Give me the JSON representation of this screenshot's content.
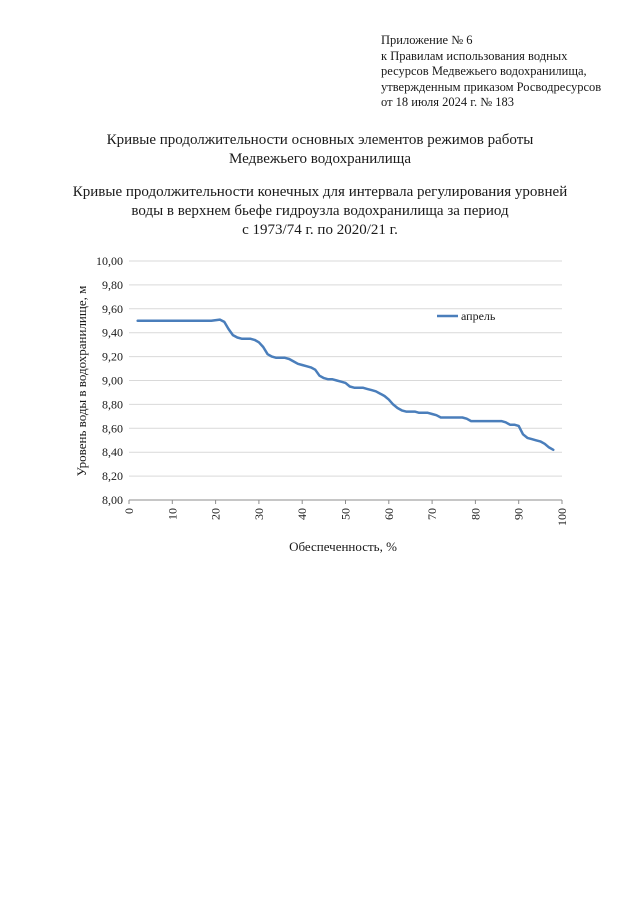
{
  "appendix": {
    "lines": [
      "Приложение № 6",
      "к Правилам использования водных",
      "ресурсов Медвежьего водохранилища,",
      "утвержденным приказом Росводресурсов",
      "от 18 июля 2024 г. № 183"
    ]
  },
  "heading": {
    "main_lines": [
      "Кривые продолжительности основных элементов режимов работы",
      "Медвежьего водохранилища"
    ],
    "sub_lines": [
      "Кривые продолжительности конечных для интервала регулирования уровней",
      "воды в верхнем бьефе гидроузла водохранилища за период",
      "с 1973/74 г. по 2020/21 г."
    ]
  },
  "chart_data": {
    "type": "line",
    "xlabel": "Обеспеченность, %",
    "ylabel": "Уровень воды в водохранилище, м",
    "xlim": [
      0,
      100
    ],
    "ylim": [
      8.0,
      10.0
    ],
    "x_ticks": [
      "0",
      "10",
      "20",
      "30",
      "40",
      "50",
      "60",
      "70",
      "80",
      "90",
      "100"
    ],
    "y_ticks": [
      "8,00",
      "8,20",
      "8,40",
      "8,60",
      "8,80",
      "9,00",
      "9,20",
      "9,40",
      "9,60",
      "9,80",
      "10,00"
    ],
    "grid": "horizontal",
    "legend_position": "top-right",
    "line_color": "#4a7ebb",
    "series": [
      {
        "name": "апрель",
        "x": [
          2,
          5,
          10,
          15,
          19,
          21,
          22,
          23,
          24,
          25,
          26,
          27,
          28,
          29,
          30,
          31,
          32,
          33,
          34,
          35,
          36,
          37,
          38,
          39,
          40,
          41,
          42,
          43,
          44,
          45,
          46,
          47,
          48,
          49,
          50,
          51,
          52,
          53,
          54,
          55,
          56,
          57,
          58,
          59,
          60,
          61,
          62,
          63,
          64,
          65,
          66,
          67,
          68,
          69,
          70,
          71,
          72,
          73,
          74,
          75,
          76,
          77,
          78,
          79,
          80,
          81,
          82,
          83,
          84,
          85,
          86,
          87,
          88,
          89,
          90,
          91,
          92,
          93,
          94,
          95,
          96,
          97,
          98
        ],
        "values": [
          9.5,
          9.5,
          9.5,
          9.5,
          9.5,
          9.51,
          9.49,
          9.43,
          9.38,
          9.36,
          9.35,
          9.35,
          9.35,
          9.34,
          9.32,
          9.28,
          9.22,
          9.2,
          9.19,
          9.19,
          9.19,
          9.18,
          9.16,
          9.14,
          9.13,
          9.12,
          9.11,
          9.09,
          9.04,
          9.02,
          9.01,
          9.01,
          9.0,
          8.99,
          8.98,
          8.95,
          8.94,
          8.94,
          8.94,
          8.93,
          8.92,
          8.91,
          8.89,
          8.87,
          8.84,
          8.8,
          8.77,
          8.75,
          8.74,
          8.74,
          8.74,
          8.73,
          8.73,
          8.73,
          8.72,
          8.71,
          8.69,
          8.69,
          8.69,
          8.69,
          8.69,
          8.69,
          8.68,
          8.66,
          8.66,
          8.66,
          8.66,
          8.66,
          8.66,
          8.66,
          8.66,
          8.65,
          8.63,
          8.63,
          8.62,
          8.55,
          8.52,
          8.51,
          8.5,
          8.49,
          8.47,
          8.44,
          8.42
        ]
      }
    ]
  }
}
